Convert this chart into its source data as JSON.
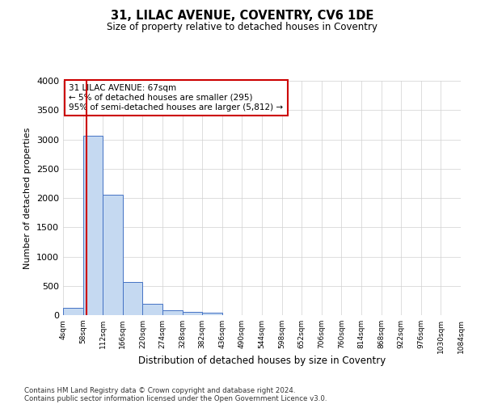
{
  "title1": "31, LILAC AVENUE, COVENTRY, CV6 1DE",
  "title2": "Size of property relative to detached houses in Coventry",
  "xlabel": "Distribution of detached houses by size in Coventry",
  "ylabel": "Number of detached properties",
  "annotation_line1": "31 LILAC AVENUE: 67sqm",
  "annotation_line2": "← 5% of detached houses are smaller (295)",
  "annotation_line3": "95% of semi-detached houses are larger (5,812) →",
  "footer1": "Contains HM Land Registry data © Crown copyright and database right 2024.",
  "footer2": "Contains public sector information licensed under the Open Government Licence v3.0.",
  "bin_edges": [
    4,
    58,
    112,
    166,
    220,
    274,
    328,
    382,
    436,
    490,
    544,
    598,
    652,
    706,
    760,
    814,
    868,
    922,
    976,
    1030,
    1084
  ],
  "bar_heights": [
    120,
    3060,
    2060,
    570,
    200,
    80,
    55,
    45,
    0,
    0,
    0,
    0,
    0,
    0,
    0,
    0,
    0,
    0,
    0,
    0
  ],
  "bar_color": "#c5d9f1",
  "bar_edgecolor": "#4472c4",
  "vline_color": "#cc0000",
  "vline_x": 67,
  "ylim": [
    0,
    4000
  ],
  "yticks": [
    0,
    500,
    1000,
    1500,
    2000,
    2500,
    3000,
    3500,
    4000
  ],
  "background_color": "#ffffff",
  "grid_color": "#d0d0d0"
}
